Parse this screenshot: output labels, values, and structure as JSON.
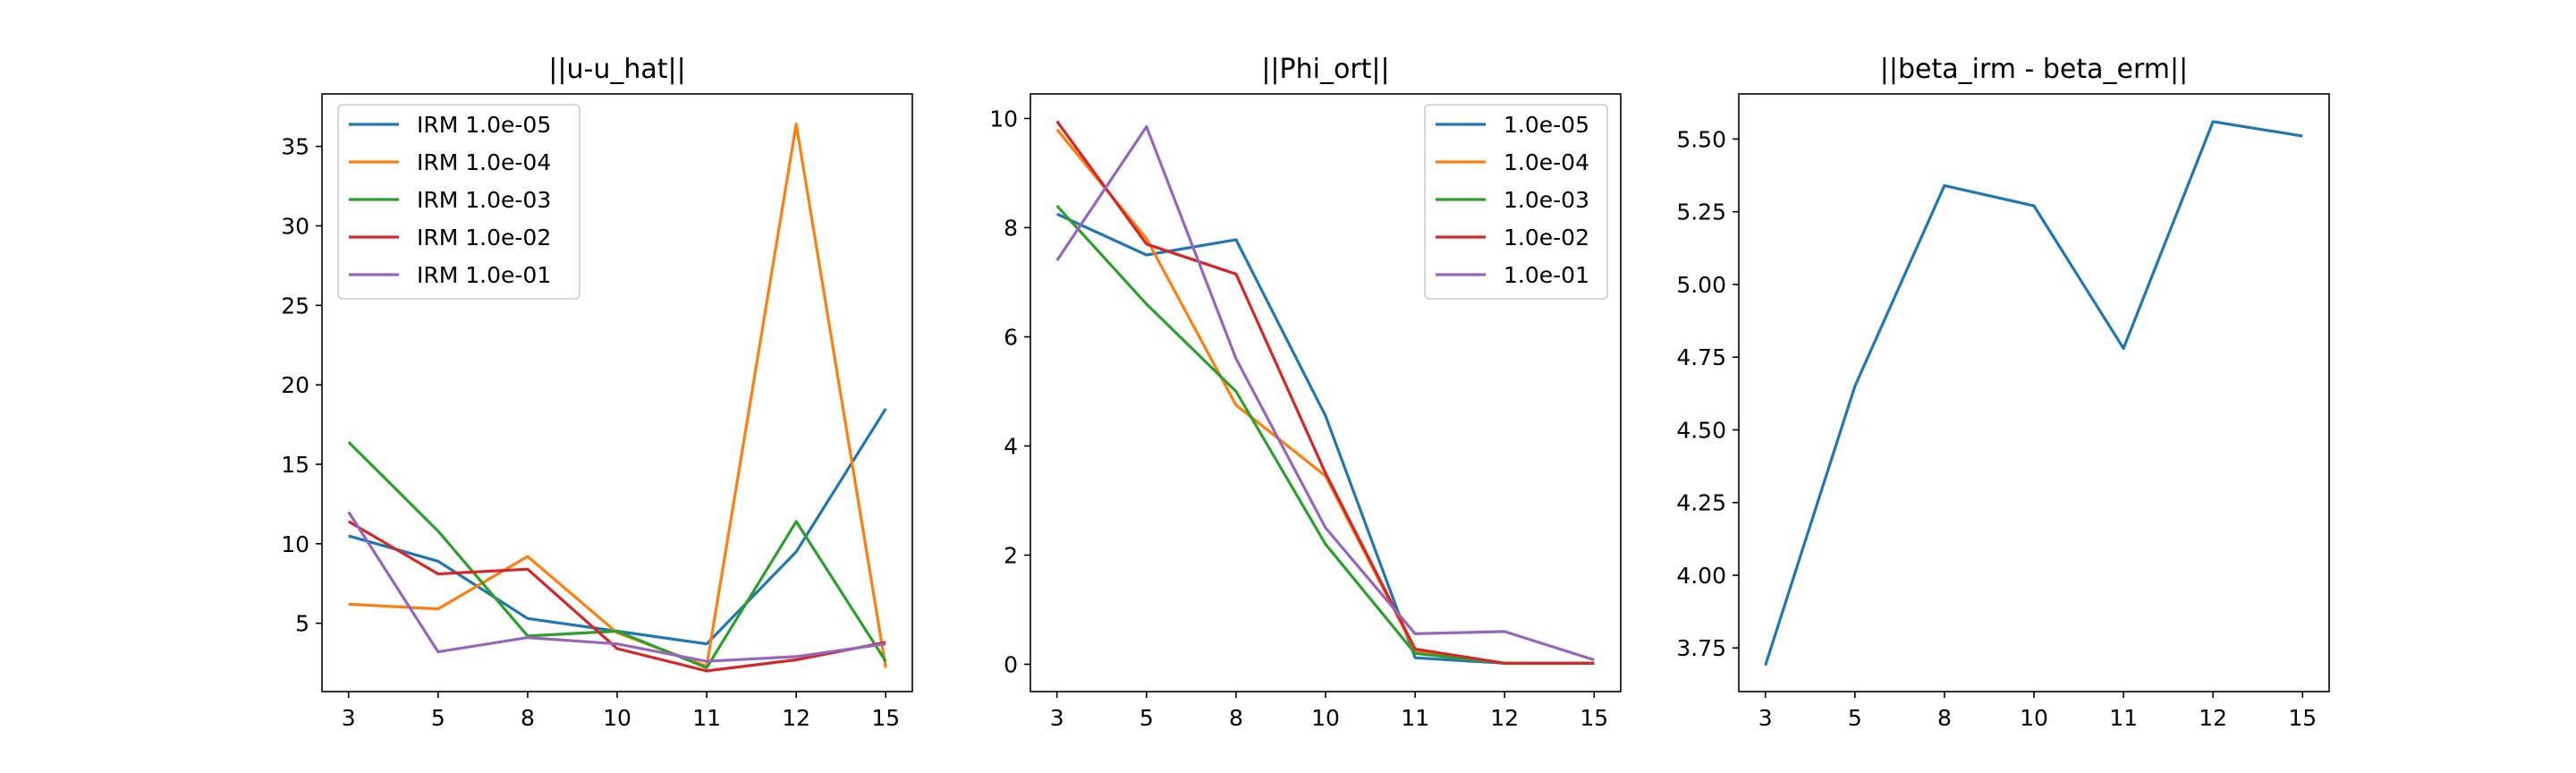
{
  "chart_data": [
    {
      "type": "line",
      "title": "||u-u_hat||",
      "xlabel": "",
      "ylabel": "",
      "categories": [
        "3",
        "5",
        "8",
        "10",
        "11",
        "12",
        "15"
      ],
      "ylim": [
        0.7,
        38.3
      ],
      "yticks": [
        5,
        10,
        15,
        20,
        25,
        30,
        35
      ],
      "ytick_labels": [
        "5",
        "10",
        "15",
        "20",
        "25",
        "30",
        "35"
      ],
      "grid": false,
      "legend_position": "upper-left",
      "series": [
        {
          "name": "IRM 1.0e-05",
          "color": "#1f77b4",
          "values": [
            10.5,
            8.9,
            5.3,
            4.5,
            3.7,
            9.5,
            18.5
          ]
        },
        {
          "name": "IRM 1.0e-04",
          "color": "#ff7f0e",
          "values": [
            6.2,
            5.9,
            9.2,
            4.4,
            2.3,
            36.4,
            2.2
          ]
        },
        {
          "name": "IRM 1.0e-03",
          "color": "#2ca02c",
          "values": [
            16.4,
            10.8,
            4.2,
            4.5,
            2.2,
            11.4,
            2.6
          ]
        },
        {
          "name": "IRM 1.0e-02",
          "color": "#d62728",
          "values": [
            11.4,
            8.1,
            8.4,
            3.4,
            2.0,
            2.7,
            3.8
          ]
        },
        {
          "name": "IRM 1.0e-01",
          "color": "#9467bd",
          "values": [
            12.0,
            3.2,
            4.1,
            3.7,
            2.6,
            2.9,
            3.7
          ]
        }
      ]
    },
    {
      "type": "line",
      "title": "||Phi_ort||",
      "xlabel": "",
      "ylabel": "",
      "categories": [
        "3",
        "5",
        "8",
        "10",
        "11",
        "12",
        "15"
      ],
      "ylim": [
        -0.5,
        10.45
      ],
      "yticks": [
        0,
        2,
        4,
        6,
        8,
        10
      ],
      "ytick_labels": [
        "0",
        "2",
        "4",
        "6",
        "8",
        "10"
      ],
      "grid": false,
      "legend_position": "upper-right",
      "series": [
        {
          "name": "1.0e-05",
          "color": "#1f77b4",
          "values": [
            8.25,
            7.5,
            7.78,
            4.55,
            0.12,
            0.02,
            0.02
          ]
        },
        {
          "name": "1.0e-04",
          "color": "#ff7f0e",
          "values": [
            9.8,
            7.8,
            4.75,
            3.45,
            0.25,
            0.02,
            0.02
          ]
        },
        {
          "name": "1.0e-03",
          "color": "#2ca02c",
          "values": [
            8.4,
            6.6,
            5.0,
            2.2,
            0.2,
            0.02,
            0.02
          ]
        },
        {
          "name": "1.0e-02",
          "color": "#d62728",
          "values": [
            9.95,
            7.7,
            7.15,
            3.5,
            0.28,
            0.02,
            0.02
          ]
        },
        {
          "name": "1.0e-01",
          "color": "#9467bd",
          "values": [
            7.4,
            9.85,
            5.6,
            2.5,
            0.56,
            0.6,
            0.08
          ]
        }
      ]
    },
    {
      "type": "line",
      "title": "||beta_irm - beta_erm||",
      "xlabel": "",
      "ylabel": "",
      "categories": [
        "3",
        "5",
        "8",
        "10",
        "11",
        "12",
        "15"
      ],
      "ylim": [
        3.6,
        5.655
      ],
      "yticks": [
        3.75,
        4.0,
        4.25,
        4.5,
        4.75,
        5.0,
        5.25,
        5.5
      ],
      "ytick_labels": [
        "3.75",
        "4.00",
        "4.25",
        "4.50",
        "4.75",
        "5.00",
        "5.25",
        "5.50"
      ],
      "grid": false,
      "legend_position": "none",
      "series": [
        {
          "color": "#1f77b4",
          "values": [
            3.69,
            4.65,
            5.34,
            5.27,
            4.78,
            5.56,
            5.51
          ]
        }
      ]
    }
  ]
}
